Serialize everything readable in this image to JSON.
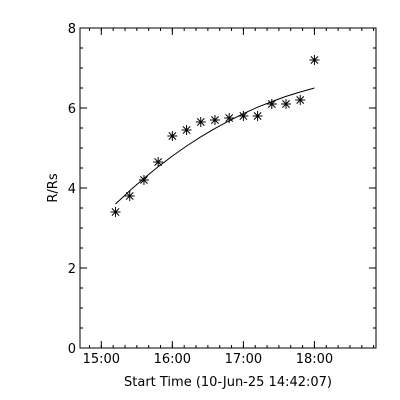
{
  "chart_data": {
    "type": "scatter",
    "xlabel": "Start Time (10-Jun-25 14:42:07)",
    "ylabel": "R/Rs",
    "xlim": [
      "14:42",
      "18:52"
    ],
    "ylim": [
      0,
      8
    ],
    "grid": false,
    "x_ticks": [
      "15:00",
      "16:00",
      "17:00",
      "18:00"
    ],
    "y_ticks": [
      0,
      2,
      4,
      6,
      8
    ],
    "series": [
      {
        "marker": "asterisk",
        "x": [
          "15:12",
          "15:24",
          "15:36",
          "15:48",
          "16:00",
          "16:12",
          "16:24",
          "16:36",
          "16:48",
          "17:00",
          "17:12",
          "17:24",
          "17:36",
          "17:48",
          "18:00"
        ],
        "y": [
          3.4,
          3.8,
          4.2,
          4.65,
          5.3,
          5.45,
          5.65,
          5.7,
          5.75,
          5.8,
          5.8,
          6.1,
          6.1,
          6.2,
          7.2
        ]
      },
      {
        "style": "line",
        "x": [
          "15:12",
          "15:24",
          "15:36",
          "15:48",
          "16:00",
          "16:12",
          "16:24",
          "16:36",
          "16:48",
          "17:00",
          "17:12",
          "17:24",
          "17:36",
          "17:48",
          "18:00"
        ],
        "y": [
          3.6,
          3.93,
          4.24,
          4.53,
          4.8,
          5.05,
          5.28,
          5.49,
          5.68,
          5.86,
          6.02,
          6.16,
          6.29,
          6.4,
          6.5
        ]
      }
    ]
  }
}
